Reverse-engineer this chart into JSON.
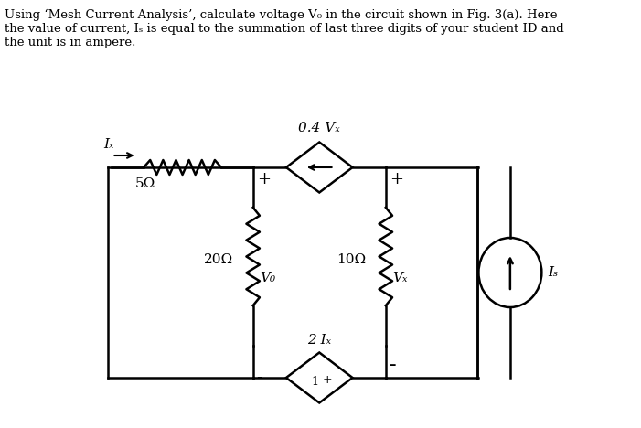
{
  "title_text": "Using ‘Mesh Current Analysis’, calculate voltage V₀ in the circuit shown in Fig. 3(a). Here\nthe value of current, Iₛ is equal to the summation of last three digits of your student ID and\nthe unit is in ampere.",
  "bg_color": "#ffffff",
  "line_color": "#000000",
  "fig_width": 7.01,
  "fig_height": 4.68,
  "dpi": 100,
  "resistor_5": "5Ω",
  "resistor_20": "20Ω",
  "resistor_10": "10Ω",
  "label_Vx": "Vₓ",
  "label_Vo": "V₀",
  "label_Ix": "Iₓ",
  "label_Is": "Iₛ",
  "label_04Vx": "0.4 Vₓ",
  "label_2Ix": "2 Iₓ"
}
